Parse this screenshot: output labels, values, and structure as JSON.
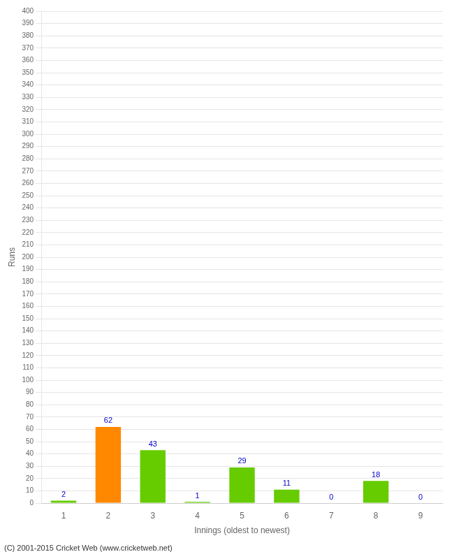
{
  "chart_data": {
    "type": "bar",
    "categories": [
      "1",
      "2",
      "3",
      "4",
      "5",
      "6",
      "7",
      "8",
      "9"
    ],
    "values": [
      2,
      62,
      43,
      1,
      29,
      11,
      0,
      18,
      0
    ],
    "colors": [
      "#66cc00",
      "#ff8800",
      "#66cc00",
      "#66cc00",
      "#66cc00",
      "#66cc00",
      "#66cc00",
      "#66cc00",
      "#66cc00"
    ],
    "xlabel": "Innings (oldest to newest)",
    "ylabel": "Runs",
    "ylim": [
      0,
      400
    ],
    "yticks": [
      0,
      10,
      20,
      30,
      40,
      50,
      60,
      70,
      80,
      90,
      100,
      110,
      120,
      130,
      140,
      150,
      160,
      170,
      180,
      190,
      200,
      210,
      220,
      230,
      240,
      250,
      260,
      270,
      280,
      290,
      300,
      310,
      320,
      330,
      340,
      350,
      360,
      370,
      380,
      390,
      400
    ],
    "grid": "y",
    "data_labels": true,
    "footer": "(C) 2001-2015 Cricket Web (www.cricketweb.net)"
  }
}
